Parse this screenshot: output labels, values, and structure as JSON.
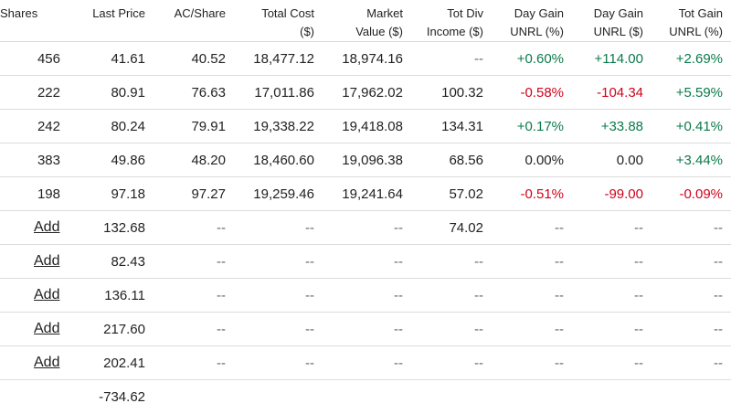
{
  "colors": {
    "positive": "#0a7a4a",
    "negative": "#d0021b"
  },
  "headers": [
    {
      "lines": [
        "Shares"
      ]
    },
    {
      "lines": [
        "Last Price"
      ]
    },
    {
      "lines": [
        "AC/Share"
      ]
    },
    {
      "lines": [
        "Total Cost",
        "($)"
      ]
    },
    {
      "lines": [
        "Market",
        "Value ($)"
      ]
    },
    {
      "lines": [
        "Tot Div",
        "Income ($)"
      ]
    },
    {
      "lines": [
        "Day Gain",
        "UNRL (%)"
      ]
    },
    {
      "lines": [
        "Day Gain",
        "UNRL ($)"
      ]
    },
    {
      "lines": [
        "Tot Gain",
        "UNRL (%)"
      ]
    }
  ],
  "rows": [
    {
      "shares": "456",
      "last_price": "41.61",
      "ac_share": "40.52",
      "total_cost": "18,477.12",
      "market_value": "18,974.16",
      "tot_div": "--",
      "day_gain_pct": "+0.60%",
      "day_gain_usd": "+114.00",
      "tot_gain_pct": "+2.69%"
    },
    {
      "shares": "222",
      "last_price": "80.91",
      "ac_share": "76.63",
      "total_cost": "17,011.86",
      "market_value": "17,962.02",
      "tot_div": "100.32",
      "day_gain_pct": "-0.58%",
      "day_gain_usd": "-104.34",
      "tot_gain_pct": "+5.59%"
    },
    {
      "shares": "242",
      "last_price": "80.24",
      "ac_share": "79.91",
      "total_cost": "19,338.22",
      "market_value": "19,418.08",
      "tot_div": "134.31",
      "day_gain_pct": "+0.17%",
      "day_gain_usd": "+33.88",
      "tot_gain_pct": "+0.41%"
    },
    {
      "shares": "383",
      "last_price": "49.86",
      "ac_share": "48.20",
      "total_cost": "18,460.60",
      "market_value": "19,096.38",
      "tot_div": "68.56",
      "day_gain_pct": "0.00%",
      "day_gain_usd": "0.00",
      "tot_gain_pct": "+3.44%"
    },
    {
      "shares": "198",
      "last_price": "97.18",
      "ac_share": "97.27",
      "total_cost": "19,259.46",
      "market_value": "19,241.64",
      "tot_div": "57.02",
      "day_gain_pct": "-0.51%",
      "day_gain_usd": "-99.00",
      "tot_gain_pct": "-0.09%"
    },
    {
      "shares": "Add",
      "last_price": "132.68",
      "ac_share": "--",
      "total_cost": "--",
      "market_value": "--",
      "tot_div": "74.02",
      "day_gain_pct": "--",
      "day_gain_usd": "--",
      "tot_gain_pct": "--"
    },
    {
      "shares": "Add",
      "last_price": "82.43",
      "ac_share": "--",
      "total_cost": "--",
      "market_value": "--",
      "tot_div": "--",
      "day_gain_pct": "--",
      "day_gain_usd": "--",
      "tot_gain_pct": "--"
    },
    {
      "shares": "Add",
      "last_price": "136.11",
      "ac_share": "--",
      "total_cost": "--",
      "market_value": "--",
      "tot_div": "--",
      "day_gain_pct": "--",
      "day_gain_usd": "--",
      "tot_gain_pct": "--"
    },
    {
      "shares": "Add",
      "last_price": "217.60",
      "ac_share": "--",
      "total_cost": "--",
      "market_value": "--",
      "tot_div": "--",
      "day_gain_pct": "--",
      "day_gain_usd": "--",
      "tot_gain_pct": "--"
    },
    {
      "shares": "Add",
      "last_price": "202.41",
      "ac_share": "--",
      "total_cost": "--",
      "market_value": "--",
      "tot_div": "--",
      "day_gain_pct": "--",
      "day_gain_usd": "--",
      "tot_gain_pct": "--"
    }
  ],
  "totals": {
    "last_price": "-734.62"
  }
}
